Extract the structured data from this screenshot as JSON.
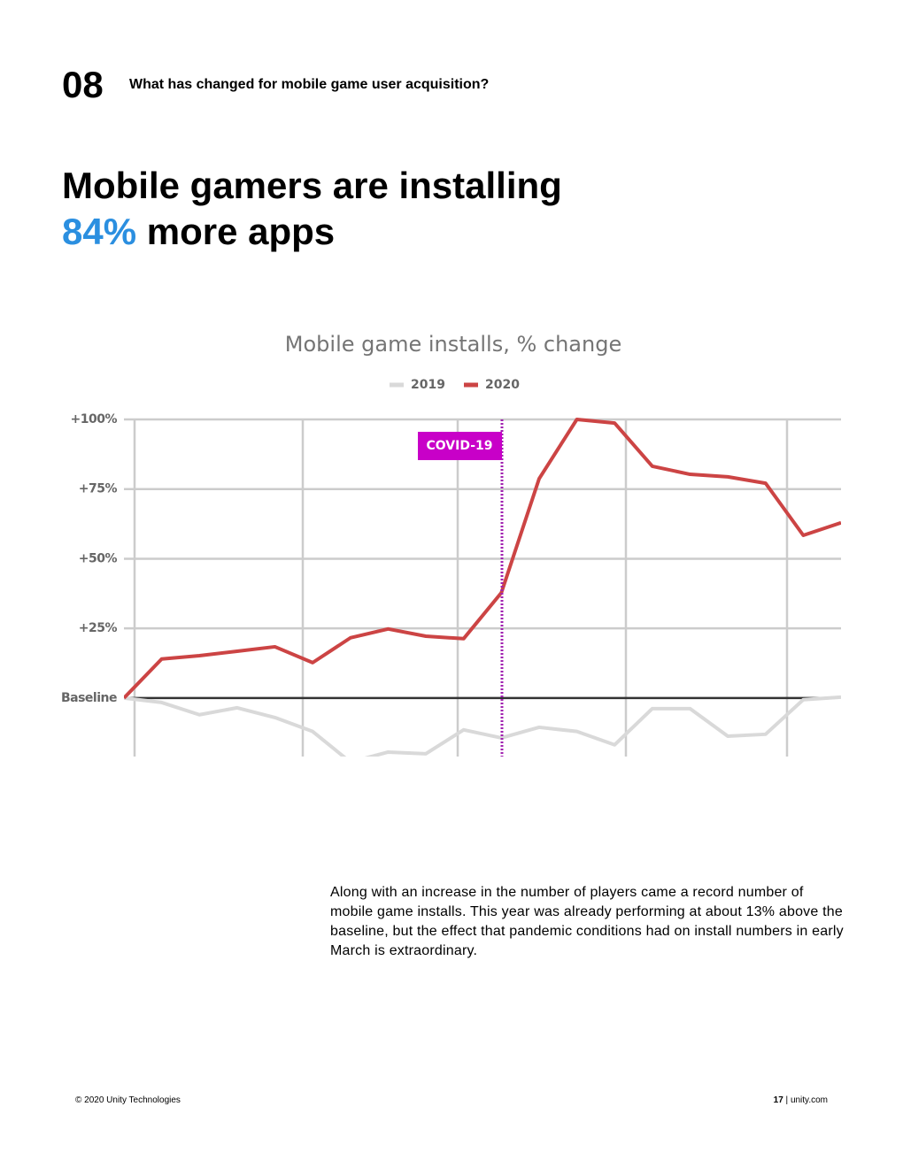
{
  "header": {
    "number": "08",
    "title": "What has changed for mobile game user acquisition?"
  },
  "headline": {
    "line1": "Mobile gamers are installing",
    "highlight": "84%",
    "rest": "more apps"
  },
  "chart_data": {
    "type": "line",
    "title": "Mobile game installs, % change",
    "categories": [
      null,
      null,
      null,
      null,
      null,
      null,
      null,
      null,
      null,
      null,
      null,
      null,
      null,
      null,
      null,
      null,
      null,
      null,
      null,
      null
    ],
    "series": [
      {
        "name": "2019",
        "color": "#d9d9d9",
        "values": [
          0,
          -1.6,
          -6,
          -3.5,
          -7,
          -12,
          -23,
          -19.4,
          -20,
          -11.4,
          -14.3,
          -10.5,
          -12,
          -16.8,
          -3.8,
          -3.8,
          -13.7,
          -13,
          -0.6,
          0.3
        ]
      },
      {
        "name": "2020",
        "color": "#cc4444",
        "values": [
          0,
          14,
          15.2,
          16.8,
          18.4,
          12.7,
          21.6,
          24.8,
          22.2,
          21.3,
          37.8,
          78.7,
          100,
          98.7,
          83.2,
          80.3,
          79.4,
          77.1,
          58.4,
          62.9
        ]
      }
    ],
    "ylim": [
      -21,
      100
    ],
    "yticks": [
      {
        "value": 0,
        "label": "Baseline"
      },
      {
        "value": 25,
        "label": "+25%"
      },
      {
        "value": 50,
        "label": "+50%"
      },
      {
        "value": 75,
        "label": "+75%"
      },
      {
        "value": 100,
        "label": "+100%"
      }
    ],
    "grid": true,
    "annotation": "COVID-19"
  },
  "body": "Along with an increase in the number of players came a record number of mobile game installs. This year was already performing at about 13% above the baseline, but the effect that pandemic conditions had on install numbers in early March is extraordinary.",
  "footer": {
    "copyright": "© 2020 Unity Technologies",
    "page": "17",
    "site": "unity.com"
  }
}
